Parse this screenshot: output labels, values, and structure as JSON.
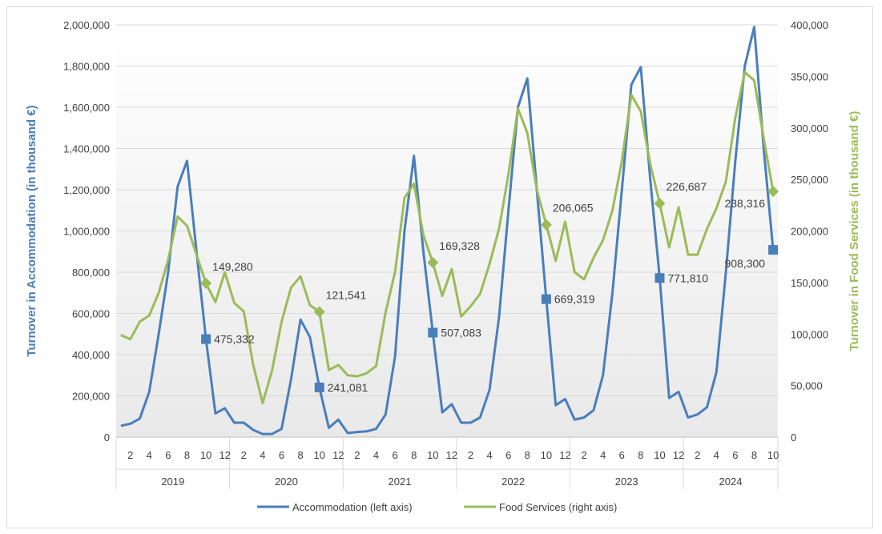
{
  "chart_data": {
    "type": "line",
    "title": "",
    "ylabel_left": "Turnover in Accommodation (in thousand €)",
    "ylabel_right": "Turnover in Food Services (in thousand €)",
    "ylim_left": [
      0,
      2000000
    ],
    "ylim_right": [
      0,
      400000
    ],
    "yticks_left": [
      "0",
      "200,000",
      "400,000",
      "600,000",
      "800,000",
      "1,000,000",
      "1,200,000",
      "1,400,000",
      "1,600,000",
      "1,800,000",
      "2,000,000"
    ],
    "yticks_right": [
      "0",
      "50,000",
      "100,000",
      "150,000",
      "200,000",
      "250,000",
      "300,000",
      "350,000",
      "400,000"
    ],
    "month_ticks": [
      "2",
      "4",
      "6",
      "8",
      "10",
      "12"
    ],
    "month_ticks_last": [
      "2",
      "4",
      "6",
      "8",
      "10"
    ],
    "years": [
      "2019",
      "2020",
      "2021",
      "2022",
      "2023",
      "2024"
    ],
    "grid": true,
    "legend_position": "bottom",
    "colors": {
      "accommodation": "#4a7ebb",
      "food": "#9bbb59",
      "axis_title_left": "#4a7ebb",
      "axis_title_right": "#9bbb59"
    },
    "series": [
      {
        "name": "Accommodation (left axis)",
        "axis": "left",
        "values": [
          55000,
          65000,
          90000,
          220000,
          500000,
          800000,
          1215000,
          1340000,
          900000,
          475332,
          115000,
          140000,
          70000,
          70000,
          35000,
          15000,
          15000,
          40000,
          280000,
          570000,
          485000,
          241081,
          45000,
          85000,
          20000,
          25000,
          28000,
          40000,
          110000,
          390000,
          1000000,
          1365000,
          900000,
          507083,
          120000,
          160000,
          70000,
          70000,
          95000,
          230000,
          580000,
          1100000,
          1600000,
          1740000,
          1200000,
          669319,
          155000,
          185000,
          85000,
          95000,
          130000,
          300000,
          700000,
          1200000,
          1710000,
          1795000,
          1250000,
          771810,
          190000,
          220000,
          95000,
          110000,
          145000,
          315000,
          800000,
          1340000,
          1800000,
          1990000,
          1400000,
          908300
        ]
      },
      {
        "name": "Food Services (right axis)",
        "axis": "right",
        "values": [
          99000,
          95000,
          112000,
          118000,
          140000,
          172000,
          214000,
          205000,
          177000,
          149280,
          131000,
          160000,
          130000,
          122000,
          70000,
          33000,
          65000,
          112000,
          145000,
          156000,
          128000,
          121541,
          65000,
          70000,
          60000,
          59000,
          62000,
          69000,
          121000,
          160000,
          232000,
          246000,
          196000,
          169328,
          137000,
          163000,
          117000,
          127000,
          139000,
          168000,
          202000,
          255000,
          319000,
          295000,
          240000,
          206065,
          171000,
          209000,
          160000,
          153000,
          174000,
          191000,
          220000,
          268000,
          332000,
          316000,
          265000,
          226687,
          184000,
          223000,
          177000,
          177000,
          202000,
          222000,
          248000,
          310000,
          354000,
          346000,
          290000,
          238316
        ]
      }
    ],
    "annotations": [
      {
        "series": 0,
        "index": 9,
        "label": "475,332"
      },
      {
        "series": 0,
        "index": 21,
        "label": "241,081"
      },
      {
        "series": 0,
        "index": 33,
        "label": "507,083"
      },
      {
        "series": 0,
        "index": 45,
        "label": "669,319"
      },
      {
        "series": 0,
        "index": 57,
        "label": "771,810"
      },
      {
        "series": 0,
        "index": 69,
        "label": "908,300"
      },
      {
        "series": 1,
        "index": 9,
        "label": "149,280"
      },
      {
        "series": 1,
        "index": 21,
        "label": "121,541"
      },
      {
        "series": 1,
        "index": 33,
        "label": "169,328"
      },
      {
        "series": 1,
        "index": 45,
        "label": "206,065"
      },
      {
        "series": 1,
        "index": 57,
        "label": "226,687"
      },
      {
        "series": 1,
        "index": 69,
        "label": "238,316"
      }
    ]
  }
}
